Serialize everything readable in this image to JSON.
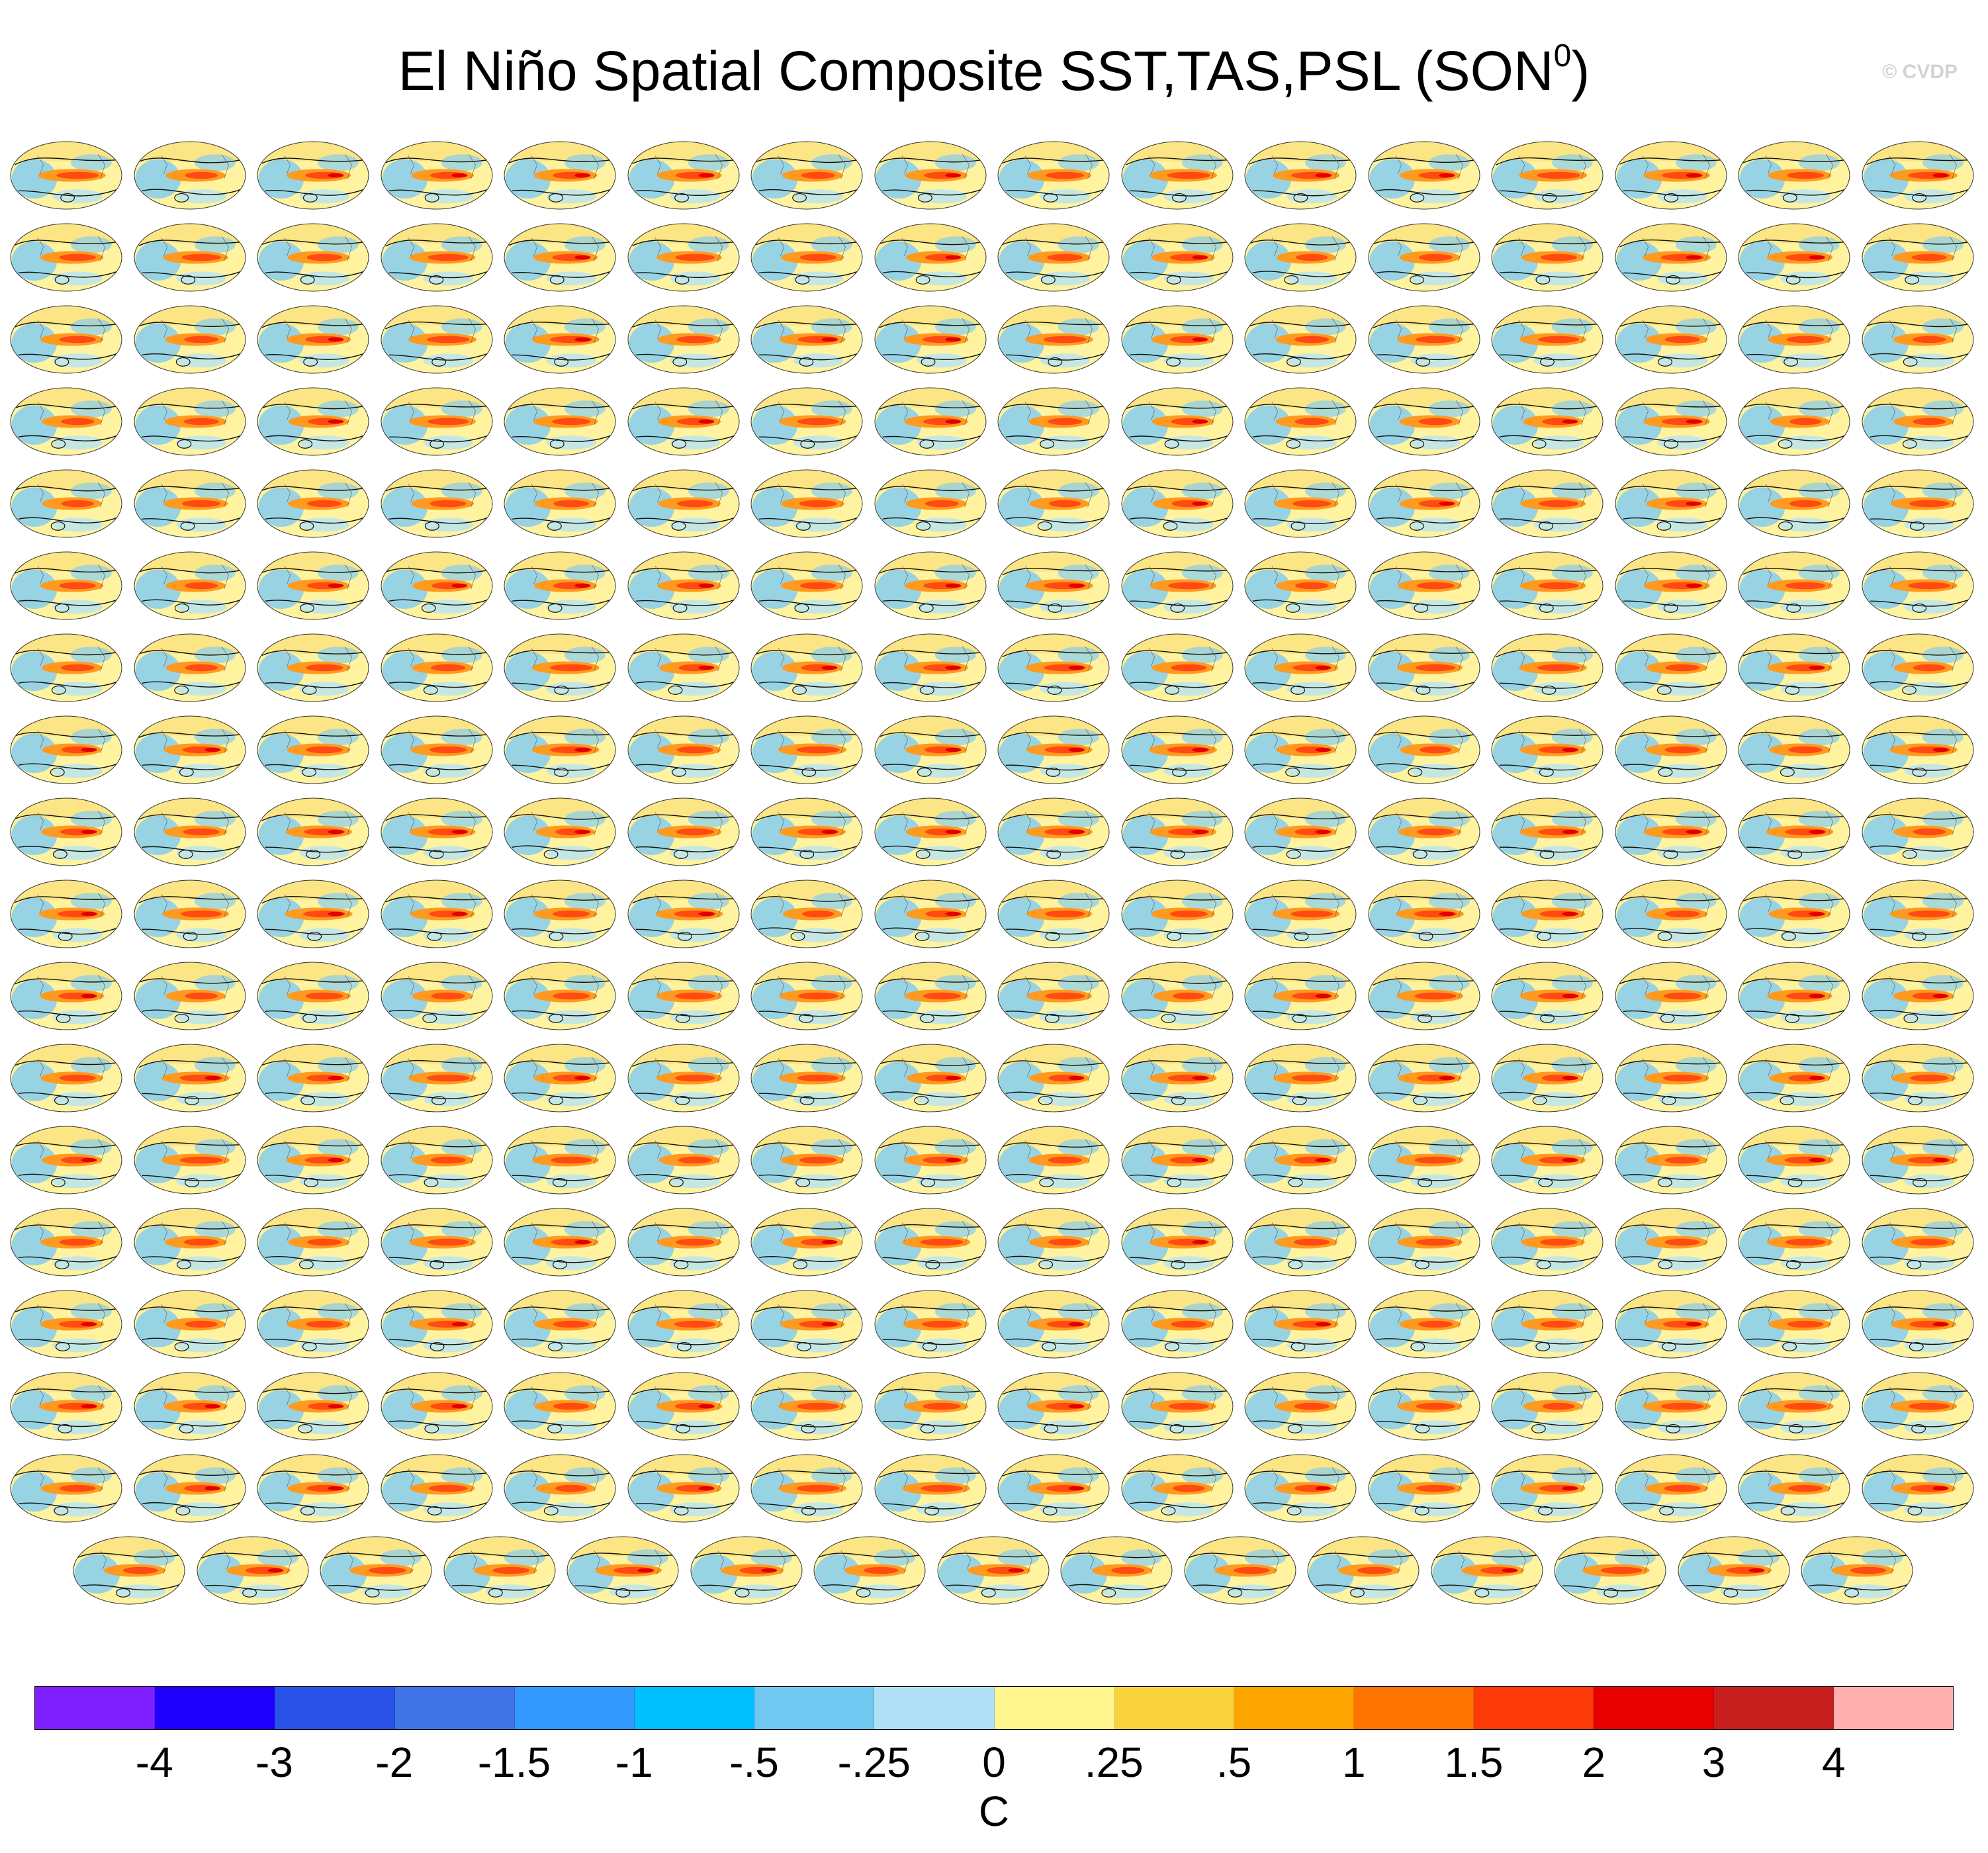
{
  "title": "El Niño Spatial Composite SST,TAS,PSL (SON",
  "title_superscript": "0",
  "title_close": ")",
  "watermark": "© CVDP",
  "panel_label_color": "#3399cc",
  "chart_data": {
    "type": "heatmap",
    "description_type": "panel grid of global map composites",
    "rows": 18,
    "columns_per_full_row": 16,
    "last_row_columns": 15,
    "legend_placement": "bottom",
    "colorbar": {
      "units": "C",
      "tick_labels": [
        "-4",
        "-3",
        "-2",
        "-1.5",
        "-1",
        "-.5",
        "-.25",
        "0",
        ".25",
        ".5",
        "1",
        "1.5",
        "2",
        "3",
        "4"
      ],
      "colors": [
        "#7f1fff",
        "#1f00ff",
        "#2a52e6",
        "#3f74e6",
        "#3399ff",
        "#00c0ff",
        "#70c8f0",
        "#b0e0f5",
        "#fff68f",
        "#f7d23c",
        "#ffa500",
        "#ff7400",
        "#ff3a0a",
        "#e60000",
        "#c81f1f",
        "#ffb0b0"
      ]
    }
  }
}
